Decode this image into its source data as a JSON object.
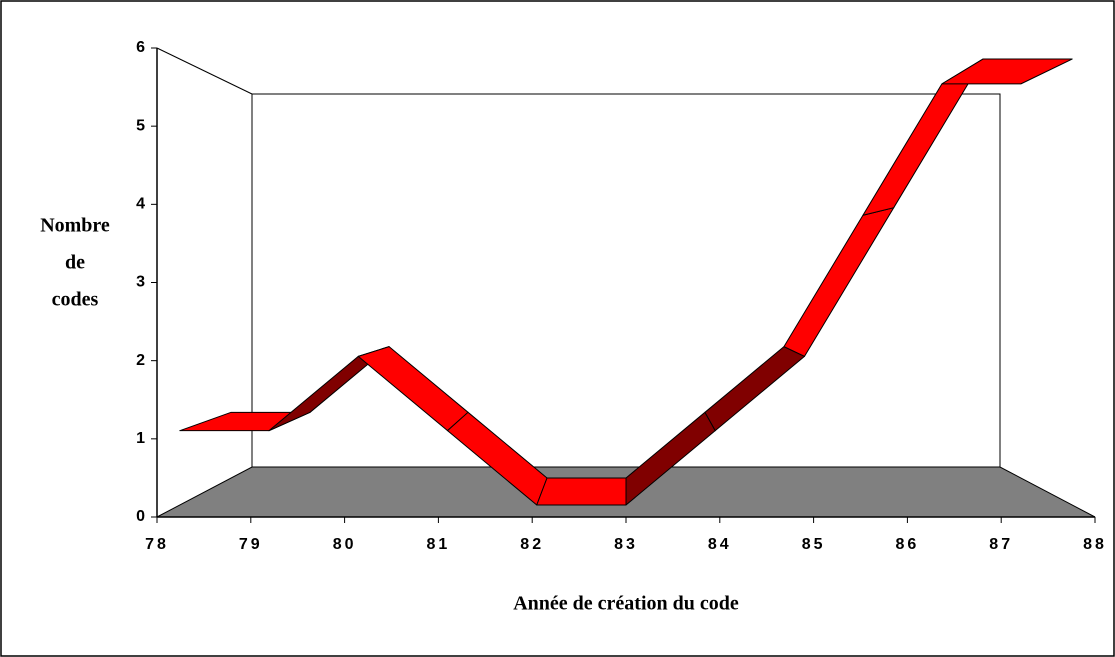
{
  "chart_data": {
    "type": "line3d",
    "xlabel": "Année de création du code",
    "ylabel": [
      "Nombre",
      "de",
      "codes"
    ],
    "x": [
      78,
      79,
      80,
      81,
      82,
      83,
      84,
      85,
      86,
      87,
      88
    ],
    "series": [
      {
        "color": "#ff0000",
        "values": [
          1,
          1,
          2,
          1,
          0,
          0,
          1,
          2,
          4,
          6,
          6
        ]
      }
    ],
    "xlim": [
      78,
      88
    ],
    "xticks": [
      78,
      79,
      80,
      81,
      82,
      83,
      84,
      85,
      86,
      87,
      88
    ],
    "ylim": [
      0,
      6
    ],
    "yticks": [
      0,
      1,
      2,
      3,
      4,
      5,
      6
    ]
  }
}
